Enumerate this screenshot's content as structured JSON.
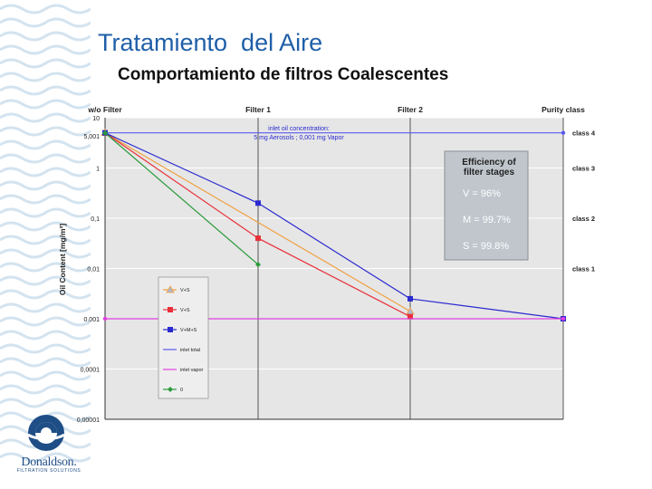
{
  "slide": {
    "title": "Tratamiento  del Aire",
    "subtitle": "Comportamiento de filtros Coalescentes"
  },
  "logo": {
    "name": "Donaldson.",
    "tagline": "FILTRATION SOLUTIONS"
  },
  "colors": {
    "title": "#1f5fa8",
    "logo": "#1f4e86",
    "plot_bg": "#e6e6e6",
    "box_bg": "#c0c6cc"
  },
  "chart_data": {
    "type": "line",
    "x": [
      "w/o Filter",
      "Filter 1",
      "Filter 2",
      "Purity class"
    ],
    "ylabel": "Oil Content [mg/m³]",
    "yscale": "log",
    "ylim": [
      1e-05,
      10
    ],
    "y_tick_labels": [
      "10",
      "5,001",
      "1",
      "0,1",
      "0,01",
      "0.001",
      "0,0001",
      "0,00001"
    ],
    "grid": true,
    "purity_classes": [
      {
        "label": "class 4",
        "y": 5
      },
      {
        "label": "class 3",
        "y": 1
      },
      {
        "label": "class 2",
        "y": 0.1
      },
      {
        "label": "class 1",
        "y": 0.01
      }
    ],
    "annotation": "inlet oil concentration:\n5 mg Aerosols ; 0,001 mg Vapor",
    "efficiency_box": {
      "title": "Efficiency of\nfilter stages",
      "items": [
        "V = 96%",
        "M = 99.7%",
        "S = 99.8%"
      ]
    },
    "series": [
      {
        "name": "V+S",
        "color": "#f0a040",
        "marker": "triangle",
        "points": [
          [
            0,
            5.001
          ],
          [
            2,
            0.0014
          ]
        ]
      },
      {
        "name": "V+S",
        "color": "#e8303a",
        "marker": "square",
        "points": [
          [
            0,
            5.001
          ],
          [
            1,
            0.04
          ],
          [
            2,
            0.0011
          ]
        ]
      },
      {
        "name": "V+M+S",
        "color": "#2a2ad0",
        "marker": "square",
        "points": [
          [
            0,
            5.001
          ],
          [
            1,
            0.2
          ],
          [
            2,
            0.0025
          ],
          [
            3,
            0.001
          ]
        ]
      },
      {
        "name": "inlet total",
        "color": "#5a5af0",
        "marker": "none",
        "points": [
          [
            0,
            5.001
          ],
          [
            3,
            5.001
          ]
        ]
      },
      {
        "name": "inlet vapor",
        "color": "#e040e0",
        "marker": "none",
        "points": [
          [
            0,
            0.001
          ],
          [
            3,
            0.001
          ]
        ]
      },
      {
        "name": "0",
        "color": "#2a9a3a",
        "marker": "diamond",
        "points": [
          [
            0,
            5.001
          ],
          [
            1,
            0.012
          ]
        ]
      }
    ],
    "legend_position": "lower-left"
  }
}
